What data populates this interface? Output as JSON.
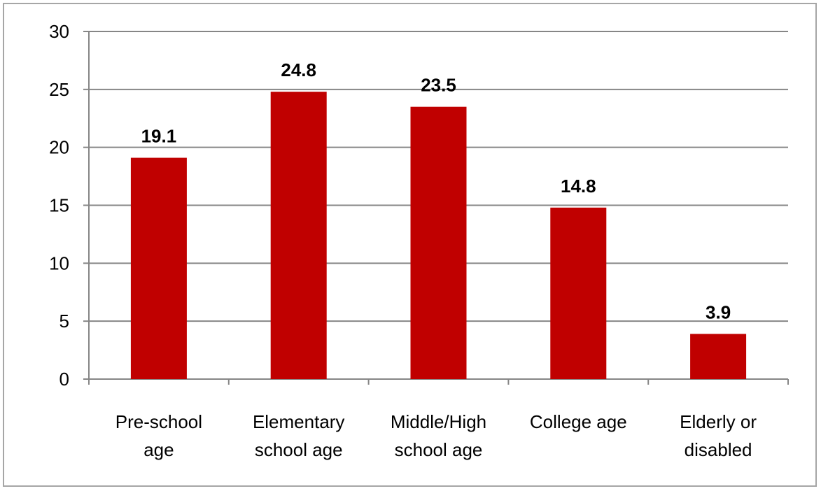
{
  "chart_data": {
    "type": "bar",
    "title": "",
    "xlabel": "",
    "ylabel": "",
    "categories": [
      [
        "Pre-school",
        "age"
      ],
      [
        "Elementary",
        "school age"
      ],
      [
        "Middle/High",
        "school age"
      ],
      [
        "College age"
      ],
      [
        "Elderly or",
        "disabled"
      ]
    ],
    "values": [
      19.1,
      24.8,
      23.5,
      14.8,
      3.9
    ],
    "value_labels": [
      "19.1",
      "24.8",
      "23.5",
      "14.8",
      "3.9"
    ],
    "ylim": [
      0,
      30
    ],
    "yticks": [
      0,
      5,
      10,
      15,
      20,
      25,
      30
    ],
    "grid": true,
    "legend": "none",
    "colors": {
      "bar": "#c00000",
      "grid": "#868686",
      "axis": "#868686",
      "border": "#a6a6a6"
    }
  }
}
